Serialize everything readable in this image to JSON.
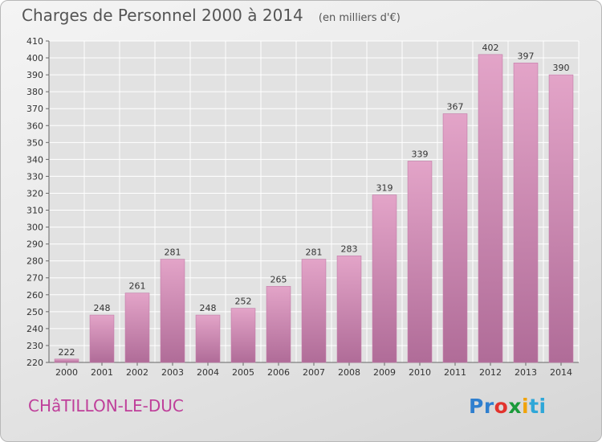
{
  "header": {
    "title": "Charges de Personnel 2000 à 2014",
    "unit": "(en milliers d'€)"
  },
  "commune": "CHâTILLON-LE-DUC",
  "logo": {
    "text": "Proxiti",
    "parts": [
      "Pr",
      "o",
      "x",
      "i",
      "ti"
    ],
    "colors": [
      "#2f7fcf",
      "#e2332d",
      "#1b9a3a",
      "#f0a30a",
      "#2fa7d8"
    ]
  },
  "chart_data": {
    "type": "bar",
    "title": "Charges de Personnel 2000 à 2014",
    "subtitle": "(en milliers d'€)",
    "categories": [
      "2000",
      "2001",
      "2002",
      "2003",
      "2004",
      "2005",
      "2006",
      "2007",
      "2008",
      "2009",
      "2010",
      "2011",
      "2012",
      "2013",
      "2014"
    ],
    "values": [
      222,
      248,
      261,
      281,
      248,
      252,
      265,
      281,
      283,
      319,
      339,
      367,
      402,
      397,
      390
    ],
    "data_labels": [
      "222",
      "248",
      "261",
      "281",
      "248",
      "252",
      "265",
      "281",
      "283",
      "319",
      "339",
      "367",
      "402",
      "397",
      "390"
    ],
    "ylim": [
      220,
      410
    ],
    "yticks": [
      220,
      230,
      240,
      250,
      260,
      270,
      280,
      290,
      300,
      310,
      320,
      330,
      340,
      350,
      360,
      370,
      380,
      390,
      400,
      410
    ],
    "grid": true,
    "bar_color": "#e3a4c8",
    "bar_color_dark": "#b06c98",
    "xlabel": "",
    "ylabel": ""
  }
}
